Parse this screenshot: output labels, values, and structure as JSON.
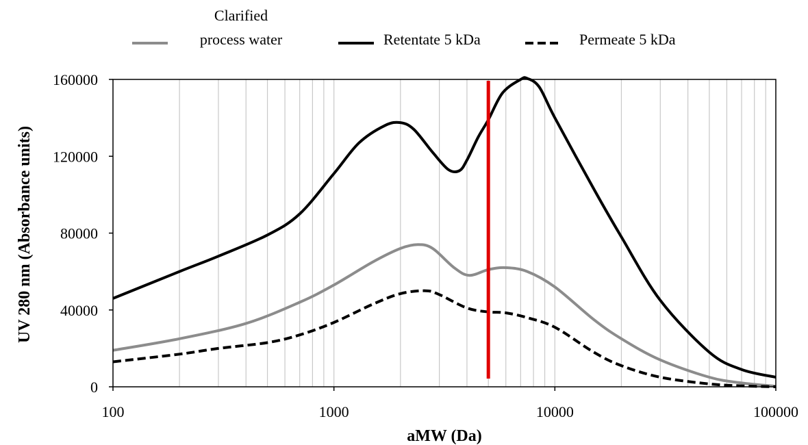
{
  "chart_data": {
    "type": "line",
    "x_scale": "log",
    "xlabel": "aMW (Da)",
    "ylabel": "UV 280 nm (Absorbance units)",
    "xlim": [
      100,
      100000
    ],
    "ylim": [
      0,
      160000
    ],
    "x_ticks": [
      100,
      1000,
      10000,
      100000
    ],
    "x_tick_labels": [
      "100",
      "1000",
      "10000",
      "100000"
    ],
    "y_ticks": [
      0,
      40000,
      80000,
      120000,
      160000
    ],
    "y_tick_labels": [
      "0",
      "40000",
      "80000",
      "120000",
      "160000"
    ],
    "grid": "vertical minor gridlines on log x-axis",
    "legend_position": "top",
    "reference_line": {
      "x": 5000,
      "color": "#e00000"
    },
    "series": [
      {
        "name": "Clarified process water",
        "name_lines": [
          "Clarified",
          "process water"
        ],
        "color": "#8c8c8c",
        "dash": "solid",
        "x": [
          100,
          200,
          400,
          700,
          1000,
          1500,
          2000,
          2400,
          2800,
          3500,
          4100,
          5000,
          6000,
          7500,
          10000,
          15000,
          20000,
          30000,
          50000,
          70000,
          100000
        ],
        "y": [
          19000,
          25000,
          33000,
          44000,
          53000,
          65000,
          72000,
          74000,
          72000,
          62000,
          58000,
          61000,
          62000,
          60000,
          52000,
          35000,
          25000,
          14000,
          5000,
          2000,
          300
        ]
      },
      {
        "name": "Retentate 5 kDa",
        "color": "#000000",
        "dash": "solid",
        "x": [
          100,
          200,
          300,
          500,
          700,
          1000,
          1300,
          1700,
          2000,
          2300,
          2800,
          3300,
          3700,
          4000,
          4500,
          5000,
          5800,
          7000,
          7500,
          8500,
          10000,
          15000,
          20000,
          30000,
          50000,
          70000,
          100000
        ],
        "y": [
          46000,
          60000,
          68000,
          79000,
          90000,
          111000,
          127000,
          136000,
          137500,
          134000,
          122000,
          113000,
          112500,
          118000,
          130000,
          139000,
          153000,
          160000,
          160500,
          156000,
          140000,
          103000,
          78000,
          45000,
          18000,
          9000,
          5000
        ]
      },
      {
        "name": "Permeate 5 kDa",
        "color": "#000000",
        "dash": "dashed",
        "x": [
          100,
          200,
          300,
          500,
          700,
          1000,
          1500,
          2000,
          2600,
          3000,
          4000,
          5000,
          6000,
          7500,
          10000,
          15000,
          20000,
          30000,
          50000,
          70000,
          100000
        ],
        "y": [
          13000,
          17000,
          20000,
          23000,
          27000,
          33500,
          43000,
          48500,
          50000,
          48000,
          41000,
          39000,
          38500,
          36000,
          31000,
          18000,
          11000,
          5000,
          1500,
          500,
          0
        ]
      }
    ]
  }
}
